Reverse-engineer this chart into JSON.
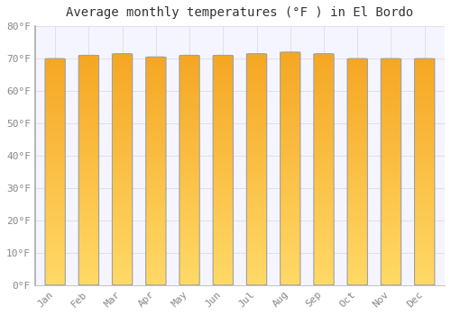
{
  "title": "Average monthly temperatures (°F ) in El Bordo",
  "months": [
    "Jan",
    "Feb",
    "Mar",
    "Apr",
    "May",
    "Jun",
    "Jul",
    "Aug",
    "Sep",
    "Oct",
    "Nov",
    "Dec"
  ],
  "temperatures": [
    70.0,
    71.0,
    71.5,
    70.5,
    71.0,
    71.0,
    71.5,
    72.0,
    71.5,
    70.0,
    70.0,
    70.0
  ],
  "ylim": [
    0,
    80
  ],
  "yticks": [
    0,
    10,
    20,
    30,
    40,
    50,
    60,
    70,
    80
  ],
  "ytick_labels": [
    "0°F",
    "10°F",
    "20°F",
    "30°F",
    "40°F",
    "50°F",
    "60°F",
    "70°F",
    "80°F"
  ],
  "bar_color_top": "#F5A623",
  "bar_color_bottom": "#FFD966",
  "bar_edge_color": "#A0A0A0",
  "background_color": "#FFFFFF",
  "plot_bg_color": "#F5F5FF",
  "grid_color": "#E0E0E8",
  "title_fontsize": 10,
  "tick_fontsize": 8,
  "font_family": "monospace",
  "bar_width": 0.6,
  "n_grad": 100
}
